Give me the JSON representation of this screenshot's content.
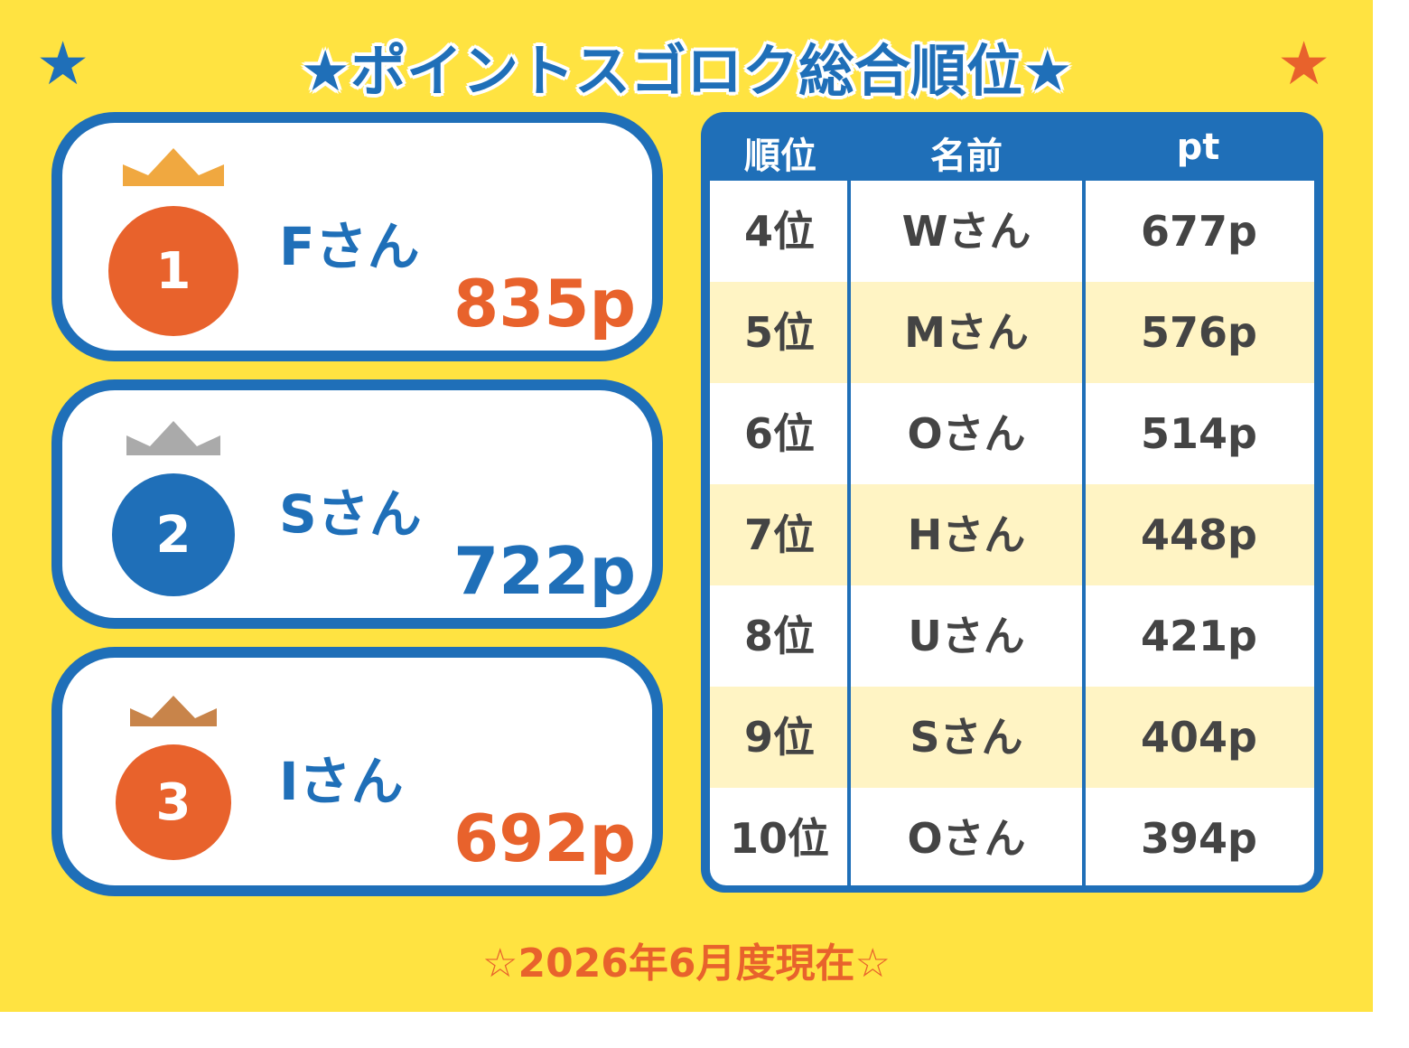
{
  "title": "★ポイントスゴロク総合順位★",
  "decor": {
    "left_star": "★",
    "right_star": "★"
  },
  "colors": {
    "background": "#ffe341",
    "blue": "#1f6fb8",
    "orange": "#e8622c",
    "gold": "#f0a840",
    "silver": "#aaaaaa",
    "bronze": "#c8844a",
    "row_alt": "#fff4c4"
  },
  "podium": [
    {
      "rank": "1",
      "name": "Fさん",
      "points": "835p",
      "crown": "gold-crown-icon"
    },
    {
      "rank": "2",
      "name": "Sさん",
      "points": "722p",
      "crown": "silver-crown-icon"
    },
    {
      "rank": "3",
      "name": "Iさん",
      "points": "692p",
      "crown": "bronze-crown-icon"
    }
  ],
  "table": {
    "headers": [
      "順位",
      "名前",
      "pt"
    ],
    "rows": [
      {
        "rank": "4位",
        "name": "Wさん",
        "pt": "677p"
      },
      {
        "rank": "5位",
        "name": "Mさん",
        "pt": "576p"
      },
      {
        "rank": "6位",
        "name": "Oさん",
        "pt": "514p"
      },
      {
        "rank": "7位",
        "name": "Hさん",
        "pt": "448p"
      },
      {
        "rank": "8位",
        "name": "Uさん",
        "pt": "421p"
      },
      {
        "rank": "9位",
        "name": "Sさん",
        "pt": "404p"
      },
      {
        "rank": "10位",
        "name": "Oさん",
        "pt": "394p"
      }
    ]
  },
  "footer": "☆2026年6月度現在☆"
}
